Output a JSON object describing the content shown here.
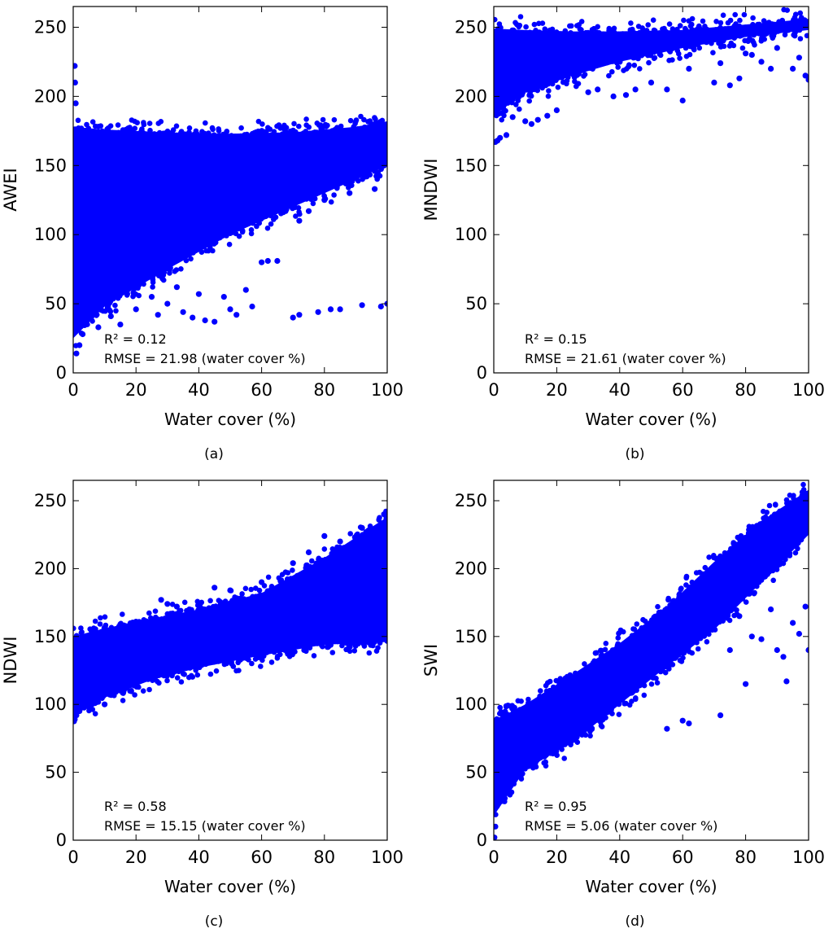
{
  "figure": {
    "panels": [
      {
        "letter": "(a)",
        "ylabel": "AWEI",
        "xlabel": "Water cover (%)",
        "stats": {
          "r2_label": "R²",
          "r2_value": "= 0.12",
          "rmse": "RMSE = 21.98 (water cover %)"
        }
      },
      {
        "letter": "(b)",
        "ylabel": "MNDWI",
        "xlabel": "Water cover (%)",
        "stats": {
          "r2_label": "R²",
          "r2_value": "= 0.15",
          "rmse": "RMSE = 21.61 (water cover %)"
        }
      },
      {
        "letter": "(c)",
        "ylabel": "NDWI",
        "xlabel": "Water cover (%)",
        "stats": {
          "r2_label": "R²",
          "r2_value": "= 0.58",
          "rmse": "RMSE = 15.15 (water cover %)"
        }
      },
      {
        "letter": "(d)",
        "ylabel": "SWI",
        "xlabel": "Water cover (%)",
        "stats": {
          "r2_label": "R²",
          "r2_value": "= 0.95",
          "rmse": "RMSE = 5.06 (water cover %)"
        }
      }
    ]
  },
  "chart_data": [
    {
      "type": "scatter",
      "title": "(a)",
      "xlabel": "Water cover (%)",
      "ylabel": "AWEI",
      "xlim": [
        0,
        100
      ],
      "ylim": [
        0,
        265
      ],
      "xticks": [
        0,
        20,
        40,
        60,
        80,
        100
      ],
      "yticks": [
        0,
        50,
        100,
        150,
        200,
        250
      ],
      "marker_color": "#0000ff",
      "annotation": [
        "R² = 0.12",
        "RMSE = 21.98 (water cover %)"
      ],
      "band": {
        "x": [
          0,
          10,
          30,
          50,
          70,
          90,
          100
        ],
        "lower": [
          25,
          48,
          75,
          100,
          120,
          140,
          150
        ],
        "upper": [
          178,
          176,
          174,
          173,
          174,
          178,
          182
        ]
      },
      "outliers": [
        [
          0.5,
          222
        ],
        [
          0.6,
          210
        ],
        [
          0.8,
          195
        ],
        [
          1,
          14
        ],
        [
          2,
          20
        ],
        [
          3,
          28
        ],
        [
          5,
          40
        ],
        [
          8,
          33
        ],
        [
          12,
          41
        ],
        [
          15,
          35
        ],
        [
          20,
          46
        ],
        [
          25,
          55
        ],
        [
          27,
          42
        ],
        [
          30,
          50
        ],
        [
          33,
          62
        ],
        [
          35,
          44
        ],
        [
          38,
          40
        ],
        [
          40,
          57
        ],
        [
          42,
          38
        ],
        [
          45,
          37
        ],
        [
          48,
          55
        ],
        [
          50,
          46
        ],
        [
          52,
          42
        ],
        [
          55,
          60
        ],
        [
          57,
          48
        ],
        [
          60,
          80
        ],
        [
          62,
          81
        ],
        [
          65,
          81
        ],
        [
          70,
          40
        ],
        [
          72,
          42
        ],
        [
          78,
          44
        ],
        [
          82,
          46
        ],
        [
          85,
          46
        ],
        [
          92,
          49
        ],
        [
          98,
          48
        ],
        [
          100,
          50
        ],
        [
          72,
          110
        ],
        [
          75,
          117
        ],
        [
          80,
          125
        ],
        [
          88,
          130
        ],
        [
          93,
          142
        ],
        [
          96,
          133
        ],
        [
          99,
          150
        ]
      ]
    },
    {
      "type": "scatter",
      "title": "(b)",
      "xlabel": "Water cover (%)",
      "ylabel": "MNDWI",
      "xlim": [
        0,
        100
      ],
      "ylim": [
        0,
        265
      ],
      "xticks": [
        0,
        20,
        40,
        60,
        80,
        100
      ],
      "yticks": [
        0,
        50,
        100,
        150,
        200,
        250
      ],
      "marker_color": "#0000ff",
      "annotation": [
        "R² = 0.15",
        "RMSE = 21.61 (water cover %)"
      ],
      "band": {
        "x": [
          0,
          10,
          25,
          40,
          60,
          80,
          100
        ],
        "lower": [
          186,
          203,
          215,
          225,
          235,
          243,
          248
        ],
        "upper": [
          249,
          248,
          247,
          247,
          248,
          252,
          256
        ]
      },
      "outliers": [
        [
          0.5,
          167
        ],
        [
          1.2,
          168
        ],
        [
          2,
          170
        ],
        [
          4,
          172
        ],
        [
          6,
          185
        ],
        [
          10,
          182
        ],
        [
          12,
          180
        ],
        [
          14,
          183
        ],
        [
          17,
          186
        ],
        [
          20,
          190
        ],
        [
          30,
          203
        ],
        [
          33,
          205
        ],
        [
          38,
          200
        ],
        [
          42,
          201
        ],
        [
          45,
          205
        ],
        [
          50,
          210
        ],
        [
          55,
          205
        ],
        [
          60,
          197
        ],
        [
          62,
          220
        ],
        [
          70,
          210
        ],
        [
          72,
          224
        ],
        [
          75,
          208
        ],
        [
          78,
          213
        ],
        [
          80,
          231
        ],
        [
          82,
          230
        ],
        [
          85,
          225
        ],
        [
          88,
          220
        ],
        [
          90,
          235
        ],
        [
          95,
          220
        ],
        [
          97,
          228
        ],
        [
          99,
          215
        ],
        [
          100,
          212
        ]
      ]
    },
    {
      "type": "scatter",
      "title": "(c)",
      "xlabel": "Water cover (%)",
      "ylabel": "NDWI",
      "xlim": [
        0,
        100
      ],
      "ylim": [
        0,
        265
      ],
      "xticks": [
        0,
        20,
        40,
        60,
        80,
        100
      ],
      "yticks": [
        0,
        50,
        100,
        150,
        200,
        250
      ],
      "marker_color": "#0000ff",
      "annotation": [
        "R² = 0.58",
        "RMSE = 15.15 (water cover %)"
      ],
      "band": {
        "x": [
          0,
          10,
          25,
          40,
          60,
          80,
          100
        ],
        "lower": [
          92,
          105,
          118,
          127,
          136,
          144,
          146
        ],
        "upper": [
          150,
          156,
          163,
          170,
          182,
          208,
          238
        ]
      },
      "outliers": [
        [
          0.5,
          89
        ],
        [
          1,
          92
        ],
        [
          2,
          95
        ],
        [
          5,
          98
        ],
        [
          10,
          100
        ],
        [
          28,
          177
        ],
        [
          30,
          174
        ],
        [
          33,
          172
        ],
        [
          37,
          170
        ],
        [
          45,
          186
        ],
        [
          50,
          184
        ],
        [
          60,
          190
        ],
        [
          70,
          204
        ],
        [
          75,
          212
        ],
        [
          80,
          224
        ],
        [
          85,
          220
        ],
        [
          88,
          215
        ],
        [
          92,
          230
        ],
        [
          97,
          218
        ],
        [
          99,
          240
        ]
      ]
    },
    {
      "type": "scatter",
      "title": "(d)",
      "xlabel": "Water cover (%)",
      "ylabel": "SWI",
      "xlim": [
        0,
        100
      ],
      "ylim": [
        0,
        265
      ],
      "xticks": [
        0,
        20,
        40,
        60,
        80,
        100
      ],
      "yticks": [
        0,
        50,
        100,
        150,
        200,
        250
      ],
      "marker_color": "#0000ff",
      "annotation": [
        "R² = 0.95",
        "RMSE = 5.06 (water cover %)"
      ],
      "band": {
        "x": [
          0,
          10,
          25,
          40,
          55,
          70,
          85,
          100
        ],
        "lower": [
          18,
          52,
          72,
          100,
          128,
          155,
          190,
          225
        ],
        "upper": [
          88,
          100,
          122,
          145,
          172,
          205,
          235,
          258
        ]
      },
      "outliers": [
        [
          0.2,
          2
        ],
        [
          0.5,
          10
        ],
        [
          1,
          25
        ],
        [
          1.5,
          40
        ],
        [
          2,
          50
        ],
        [
          55,
          82
        ],
        [
          60,
          88
        ],
        [
          62,
          86
        ],
        [
          72,
          92
        ],
        [
          75,
          140
        ],
        [
          78,
          165
        ],
        [
          80,
          115
        ],
        [
          82,
          150
        ],
        [
          85,
          148
        ],
        [
          88,
          170
        ],
        [
          90,
          140
        ],
        [
          92,
          135
        ],
        [
          93,
          117
        ],
        [
          95,
          160
        ],
        [
          97,
          152
        ],
        [
          99,
          172
        ],
        [
          100,
          140
        ]
      ]
    }
  ]
}
